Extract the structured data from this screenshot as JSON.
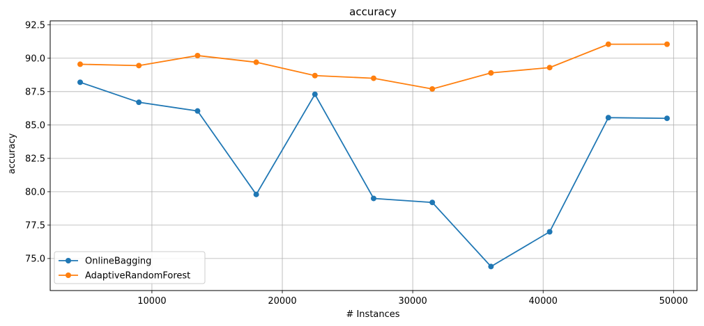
{
  "chart_data": {
    "type": "line",
    "title": "accuracy",
    "xlabel": "# Instances",
    "ylabel": "accuracy",
    "xlim": [
      2200,
      51800
    ],
    "ylim": [
      72.6,
      92.8
    ],
    "x_ticks": [
      10000,
      20000,
      30000,
      40000,
      50000
    ],
    "x_tick_labels": [
      "10000",
      "20000",
      "30000",
      "40000",
      "50000"
    ],
    "y_ticks": [
      75.0,
      77.5,
      80.0,
      82.5,
      85.0,
      87.5,
      90.0,
      92.5
    ],
    "y_tick_labels": [
      "75.0",
      "77.5",
      "80.0",
      "82.5",
      "85.0",
      "87.5",
      "90.0",
      "92.5"
    ],
    "grid": true,
    "legend_position": "lower-left",
    "x": [
      4500,
      9000,
      13500,
      18000,
      22500,
      27000,
      31500,
      36000,
      40500,
      45000,
      49500
    ],
    "series": [
      {
        "name": "OnlineBagging",
        "color": "#1f77b4",
        "values": [
          88.2,
          86.7,
          86.05,
          79.8,
          87.3,
          79.5,
          79.2,
          74.4,
          77.0,
          85.55,
          85.5
        ]
      },
      {
        "name": "AdaptiveRandomForest",
        "color": "#ff7f0e",
        "values": [
          89.55,
          89.45,
          90.2,
          89.7,
          88.7,
          88.5,
          87.7,
          88.9,
          89.3,
          91.05,
          91.05
        ]
      }
    ]
  }
}
